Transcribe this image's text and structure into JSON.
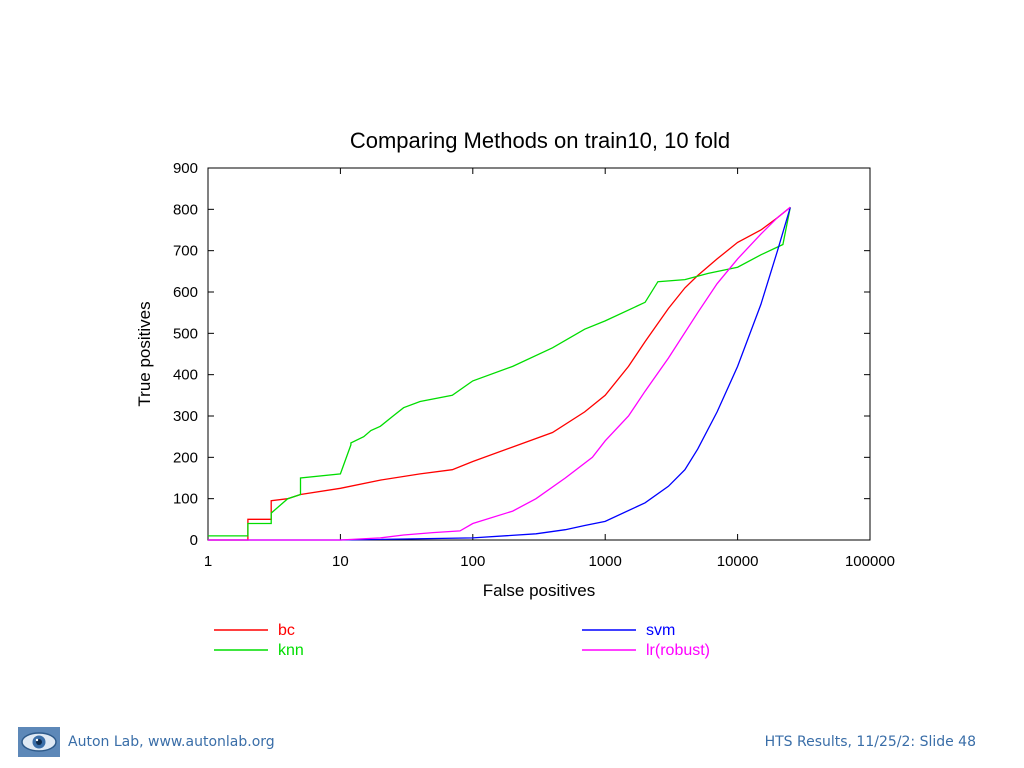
{
  "chart_data": {
    "type": "line",
    "title": "Comparing Methods on train10, 10 fold",
    "xlabel": "False positives",
    "ylabel": "True positives",
    "xscale": "log",
    "xlim": [
      1,
      100000
    ],
    "ylim": [
      0,
      900
    ],
    "xticks": [
      1,
      10,
      100,
      1000,
      10000,
      100000
    ],
    "xtick_labels": [
      "1",
      "10",
      "100",
      "1000",
      "10000",
      "100000"
    ],
    "yticks": [
      0,
      100,
      200,
      300,
      400,
      500,
      600,
      700,
      800,
      900
    ],
    "ytick_labels": [
      "0",
      "100",
      "200",
      "300",
      "400",
      "500",
      "600",
      "700",
      "800",
      "900"
    ],
    "grid": false,
    "legend_position": "bottom",
    "series": [
      {
        "name": "bc",
        "color": "#ff0000",
        "x": [
          1,
          2,
          2,
          3,
          3,
          4,
          5,
          10,
          20,
          40,
          70,
          100,
          200,
          400,
          700,
          1000,
          1500,
          2000,
          3000,
          4000,
          5000,
          7000,
          10000,
          15000,
          20000,
          25000
        ],
        "y": [
          0,
          0,
          50,
          50,
          95,
          100,
          110,
          125,
          145,
          160,
          170,
          190,
          225,
          260,
          310,
          350,
          420,
          480,
          560,
          610,
          640,
          680,
          720,
          750,
          780,
          805
        ]
      },
      {
        "name": "knn",
        "color": "#00dd00",
        "x": [
          1,
          2,
          2,
          3,
          3,
          4,
          5,
          5,
          10,
          12,
          12,
          15,
          17,
          20,
          25,
          30,
          40,
          70,
          100,
          200,
          400,
          700,
          1000,
          2000,
          2500,
          4000,
          6000,
          10000,
          15000,
          22000,
          25000
        ],
        "y": [
          10,
          10,
          40,
          40,
          65,
          100,
          110,
          150,
          160,
          230,
          235,
          250,
          265,
          275,
          300,
          320,
          335,
          350,
          385,
          420,
          465,
          510,
          530,
          575,
          625,
          630,
          645,
          660,
          690,
          715,
          805
        ]
      },
      {
        "name": "svm",
        "color": "#0000ff",
        "x": [
          1,
          10,
          100,
          300,
          500,
          700,
          1000,
          2000,
          3000,
          4000,
          5000,
          7000,
          10000,
          15000,
          20000,
          25000
        ],
        "y": [
          0,
          0,
          5,
          15,
          25,
          35,
          45,
          90,
          130,
          170,
          220,
          310,
          420,
          570,
          700,
          805
        ]
      },
      {
        "name": "lr(robust)",
        "color": "#ff00ff",
        "x": [
          1,
          10,
          20,
          30,
          50,
          80,
          100,
          200,
          300,
          500,
          800,
          1000,
          1500,
          2000,
          3000,
          5000,
          7000,
          10000,
          15000,
          20000,
          25000
        ],
        "y": [
          0,
          0,
          5,
          12,
          18,
          22,
          40,
          70,
          100,
          150,
          200,
          240,
          300,
          360,
          440,
          550,
          620,
          680,
          740,
          780,
          805
        ]
      }
    ]
  },
  "footer": {
    "left_text": "Auton Lab, www.autonlab.org",
    "right_text": "HTS Results, 11/25/2: Slide 48",
    "logo_icon": "eye-logo-icon"
  }
}
